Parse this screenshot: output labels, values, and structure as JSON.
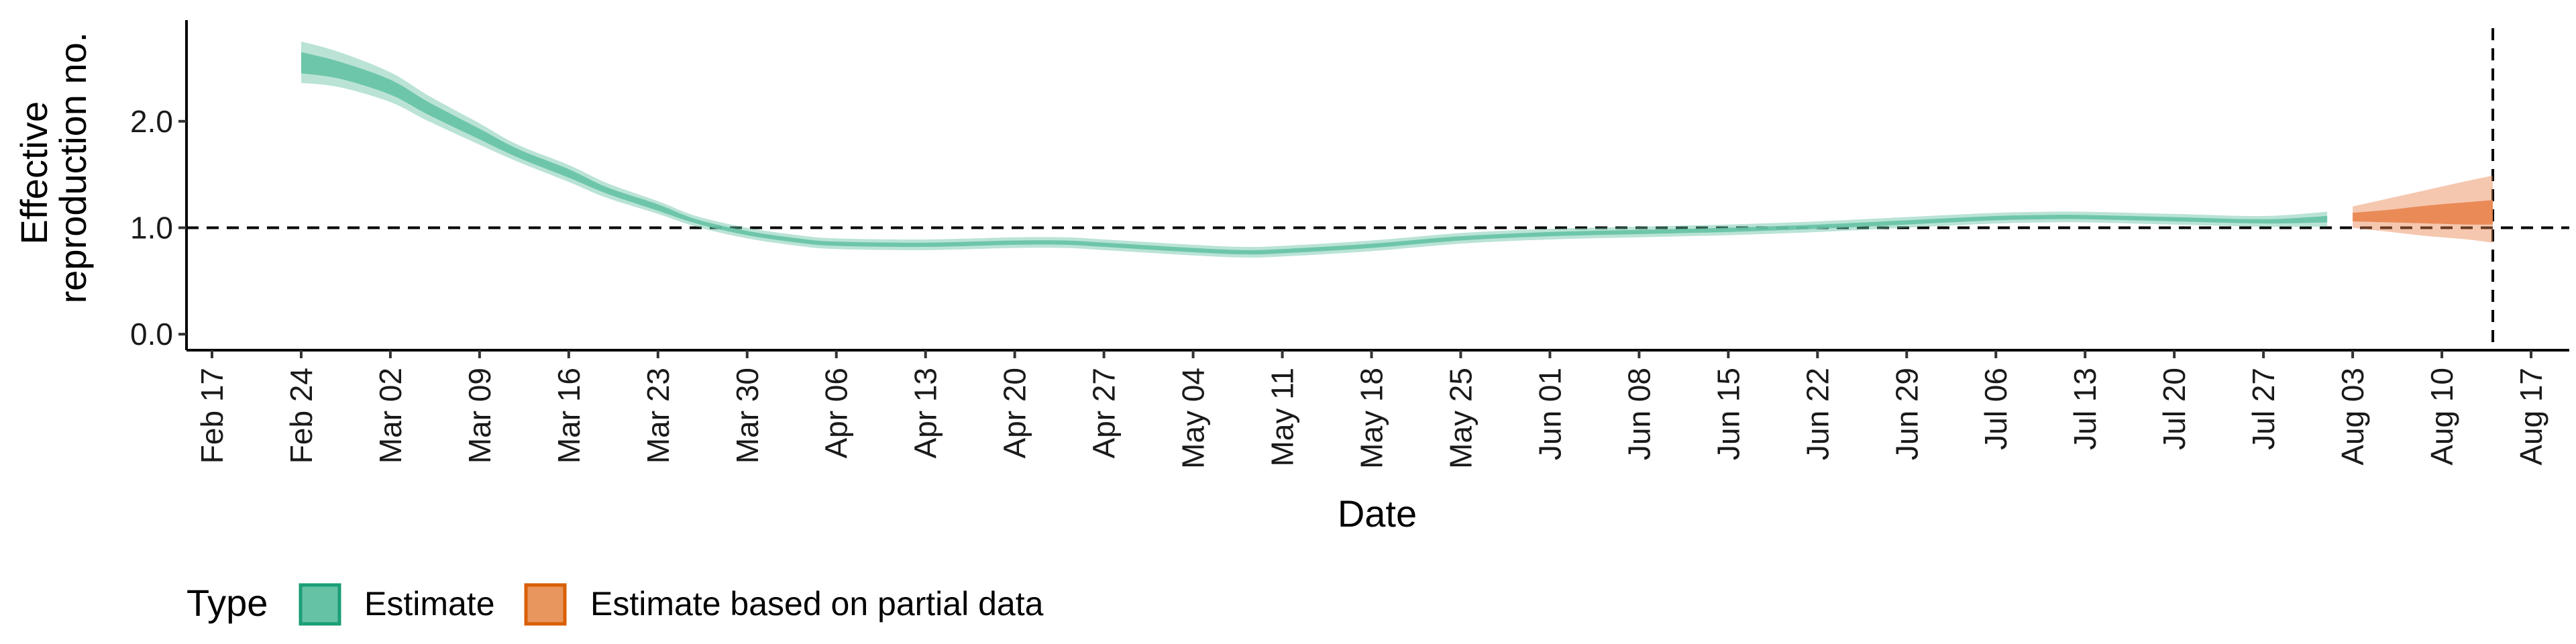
{
  "chart_data": {
    "type": "area",
    "xlabel": "Date",
    "ylabel_lines": [
      "Effective",
      "reproduction no."
    ],
    "x_tick_labels": [
      "Feb 17",
      "Feb 24",
      "Mar 02",
      "Mar 09",
      "Mar 16",
      "Mar 23",
      "Mar 30",
      "Apr 06",
      "Apr 13",
      "Apr 20",
      "Apr 27",
      "May 04",
      "May 11",
      "May 18",
      "May 25",
      "Jun 01",
      "Jun 08",
      "Jun 15",
      "Jun 22",
      "Jun 29",
      "Jul 06",
      "Jul 13",
      "Jul 20",
      "Jul 27",
      "Aug 03",
      "Aug 10",
      "Aug 17"
    ],
    "x_range": [
      "2020-02-15",
      "2020-08-20"
    ],
    "y_tick_values": [
      0.0,
      1.0,
      2.0
    ],
    "y_tick_labels": [
      "0.0",
      "1.0",
      "2.0"
    ],
    "ylim": [
      -0.15,
      2.95
    ],
    "reference_lines": {
      "horizontal_y": 1.0,
      "vertical_x": "2020-08-14"
    },
    "legend": {
      "title": "Type",
      "position": "bottom",
      "entries": [
        {
          "label": "Estimate",
          "color": "#66c2a5"
        },
        {
          "label": "Estimate based on partial data",
          "color": "#e8834e"
        }
      ]
    },
    "series": [
      {
        "name": "Estimate",
        "color": "#66c2a5",
        "dates": [
          "2020-02-24",
          "2020-02-27",
          "2020-03-02",
          "2020-03-05",
          "2020-03-09",
          "2020-03-12",
          "2020-03-16",
          "2020-03-19",
          "2020-03-23",
          "2020-03-26",
          "2020-03-30",
          "2020-04-03",
          "2020-04-06",
          "2020-04-13",
          "2020-04-20",
          "2020-04-24",
          "2020-04-27",
          "2020-05-04",
          "2020-05-08",
          "2020-05-11",
          "2020-05-18",
          "2020-05-25",
          "2020-06-01",
          "2020-06-08",
          "2020-06-15",
          "2020-06-22",
          "2020-06-29",
          "2020-07-06",
          "2020-07-10",
          "2020-07-13",
          "2020-07-20",
          "2020-07-27",
          "2020-08-01"
        ],
        "median": [
          2.55,
          2.48,
          2.32,
          2.12,
          1.88,
          1.7,
          1.51,
          1.35,
          1.19,
          1.06,
          0.95,
          0.88,
          0.85,
          0.84,
          0.86,
          0.86,
          0.84,
          0.79,
          0.77,
          0.78,
          0.83,
          0.9,
          0.94,
          0.96,
          0.98,
          1.01,
          1.05,
          1.09,
          1.1,
          1.1,
          1.08,
          1.06,
          1.08
        ],
        "inner_lower": [
          2.45,
          2.4,
          2.25,
          2.06,
          1.83,
          1.66,
          1.47,
          1.32,
          1.16,
          1.04,
          0.93,
          0.86,
          0.83,
          0.82,
          0.84,
          0.84,
          0.82,
          0.77,
          0.75,
          0.76,
          0.81,
          0.88,
          0.92,
          0.94,
          0.96,
          0.99,
          1.03,
          1.07,
          1.08,
          1.08,
          1.06,
          1.04,
          1.05
        ],
        "inner_upper": [
          2.65,
          2.56,
          2.39,
          2.18,
          1.93,
          1.74,
          1.55,
          1.38,
          1.22,
          1.08,
          0.97,
          0.9,
          0.87,
          0.86,
          0.88,
          0.88,
          0.86,
          0.81,
          0.79,
          0.8,
          0.85,
          0.92,
          0.96,
          0.98,
          1.0,
          1.03,
          1.07,
          1.11,
          1.12,
          1.12,
          1.1,
          1.08,
          1.11
        ],
        "outer_lower": [
          2.36,
          2.32,
          2.18,
          2.0,
          1.78,
          1.62,
          1.43,
          1.28,
          1.13,
          1.01,
          0.9,
          0.83,
          0.8,
          0.79,
          0.81,
          0.81,
          0.79,
          0.74,
          0.72,
          0.73,
          0.78,
          0.85,
          0.89,
          0.91,
          0.93,
          0.96,
          1.0,
          1.04,
          1.05,
          1.05,
          1.03,
          1.01,
          1.01
        ],
        "outer_upper": [
          2.75,
          2.65,
          2.46,
          2.24,
          1.98,
          1.78,
          1.59,
          1.42,
          1.25,
          1.11,
          1.0,
          0.93,
          0.9,
          0.89,
          0.91,
          0.91,
          0.89,
          0.84,
          0.82,
          0.83,
          0.88,
          0.95,
          0.99,
          1.01,
          1.03,
          1.06,
          1.1,
          1.14,
          1.15,
          1.15,
          1.13,
          1.11,
          1.15
        ]
      },
      {
        "name": "Estimate based on partial data",
        "color": "#e8834e",
        "dates": [
          "2020-08-03",
          "2020-08-06",
          "2020-08-09",
          "2020-08-12",
          "2020-08-14"
        ],
        "median": [
          1.1,
          1.11,
          1.12,
          1.13,
          1.14
        ],
        "inner_lower": [
          1.06,
          1.05,
          1.04,
          1.03,
          1.03
        ],
        "inner_upper": [
          1.14,
          1.17,
          1.21,
          1.24,
          1.26
        ],
        "outer_lower": [
          1.0,
          0.96,
          0.92,
          0.89,
          0.86
        ],
        "outer_upper": [
          1.2,
          1.28,
          1.36,
          1.44,
          1.49
        ]
      }
    ]
  }
}
